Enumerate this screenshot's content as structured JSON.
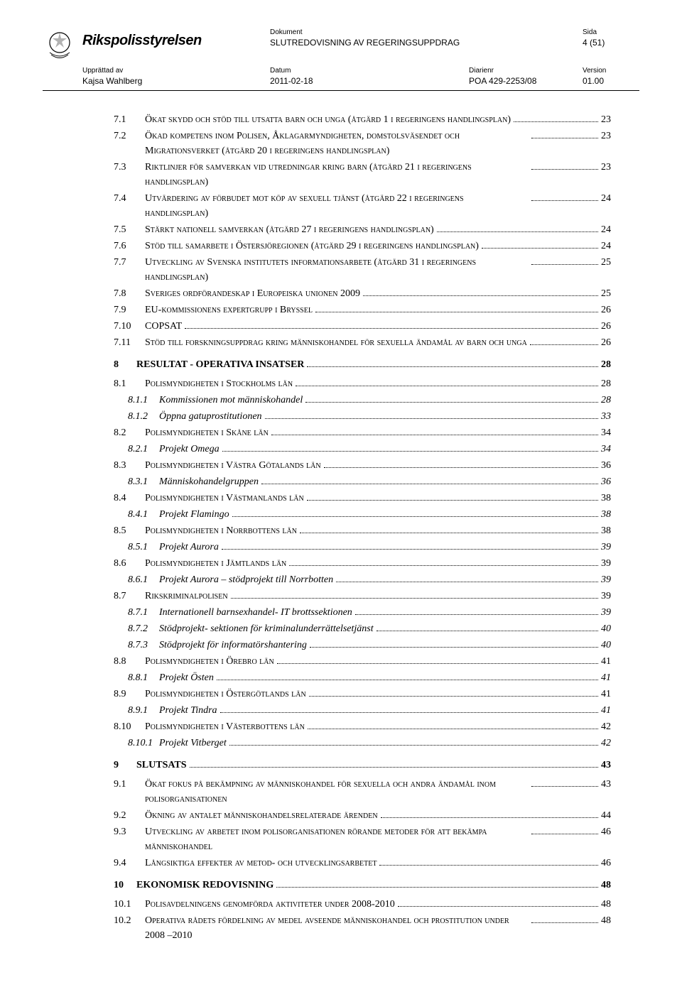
{
  "header": {
    "org_name": "Rikspolisstyrelsen",
    "dokument_label": "Dokument",
    "dokument_value": "SLUTREDOVISNING AV REGERINGSUPPDRAG",
    "sida_label": "Sida",
    "sida_value": "4 (51)",
    "upprattad_label": "Upprättad av",
    "upprattad_value": "Kajsa Wahlberg",
    "datum_label": "Datum",
    "datum_value": "2011-02-18",
    "diarienr_label": "Diarienr",
    "diarienr_value": "POA 429-2253/08",
    "version_label": "Version",
    "version_value": "01.00"
  },
  "toc": [
    {
      "level": 2,
      "num": "7.1",
      "title": "Ökat skydd och stöd till utsatta barn och unga (åtgärd 1 i regeringens handlingsplan)",
      "page": "23",
      "wrap": true
    },
    {
      "level": 2,
      "num": "7.2",
      "title": "Ökad kompetens inom Polisen, Åklagarmyndigheten, domstolsväsendet och Migrationsverket (åtgärd 20 i regeringens handlingsplan)",
      "page": "23",
      "wrap": true
    },
    {
      "level": 2,
      "num": "7.3",
      "title": "Riktlinjer för samverkan vid utredningar kring barn (åtgärd 21 i regeringens handlingsplan)",
      "page": "23",
      "wrap": true
    },
    {
      "level": 2,
      "num": "7.4",
      "title": "Utvärdering av förbudet mot köp av sexuell tjänst (åtgärd 22 i regeringens handlingsplan)",
      "page": "24",
      "wrap": true
    },
    {
      "level": 2,
      "num": "7.5",
      "title": "Stärkt nationell samverkan (åtgärd 27 i regeringens handlingsplan)",
      "page": "24",
      "wrap": true
    },
    {
      "level": 2,
      "num": "7.6",
      "title": "Stöd till samarbete i Östersjöregionen (åtgärd 29 i regeringens handlingsplan)",
      "page": "24",
      "wrap": true
    },
    {
      "level": 2,
      "num": "7.7",
      "title": "Utveckling av Svenska institutets informationsarbete (åtgärd 31 i regeringens handlingsplan)",
      "page": "25",
      "wrap": true
    },
    {
      "level": 2,
      "num": "7.8",
      "title": "Sveriges ordförandeskap i Europeiska unionen 2009",
      "page": "25"
    },
    {
      "level": 2,
      "num": "7.9",
      "title": "EU-kommissionens expertgrupp i Bryssel",
      "page": "26"
    },
    {
      "level": 2,
      "num": "7.10",
      "title": "COPSAT",
      "page": "26"
    },
    {
      "level": 2,
      "num": "7.11",
      "title": "Stöd till forskningsuppdrag kring människohandel för sexuella ändamål av barn och unga",
      "page": "26",
      "wrap": true
    },
    {
      "level": 1,
      "num": "8",
      "title": "RESULTAT - OPERATIVA INSATSER",
      "page": "28"
    },
    {
      "level": 2,
      "num": "8.1",
      "title": "Polismyndigheten i Stockholms län",
      "page": "28"
    },
    {
      "level": 3,
      "num": "8.1.1",
      "title": "Kommissionen mot människohandel",
      "page": "28"
    },
    {
      "level": 3,
      "num": "8.1.2",
      "title": "Öppna gatuprostitutionen",
      "page": "33"
    },
    {
      "level": 2,
      "num": "8.2",
      "title": "Polismyndigheten i Skåne län",
      "page": "34"
    },
    {
      "level": 3,
      "num": "8.2.1",
      "title": "Projekt Omega",
      "page": "34"
    },
    {
      "level": 2,
      "num": "8.3",
      "title": "Polismyndigheten i Västra Götalands län",
      "page": "36"
    },
    {
      "level": 3,
      "num": "8.3.1",
      "title": "Människohandelgruppen",
      "page": "36"
    },
    {
      "level": 2,
      "num": "8.4",
      "title": "Polismyndigheten i Västmanlands län",
      "page": "38"
    },
    {
      "level": 3,
      "num": "8.4.1",
      "title": "Projekt Flamingo",
      "page": "38"
    },
    {
      "level": 2,
      "num": "8.5",
      "title": "Polismyndigheten i Norrbottens län",
      "page": "38"
    },
    {
      "level": 3,
      "num": "8.5.1",
      "title": "Projekt Aurora",
      "page": "39"
    },
    {
      "level": 2,
      "num": "8.6",
      "title": "Polismyndigheten i Jämtlands län",
      "page": "39"
    },
    {
      "level": 3,
      "num": "8.6.1",
      "title": "Projekt Aurora – stödprojekt till Norrbotten",
      "page": "39"
    },
    {
      "level": 2,
      "num": "8.7",
      "title": "Rikskriminalpolisen",
      "page": "39"
    },
    {
      "level": 3,
      "num": "8.7.1",
      "title": "Internationell barnsexhandel- IT brottssektionen",
      "page": "39"
    },
    {
      "level": 3,
      "num": "8.7.2",
      "title": "Stödprojekt- sektionen för kriminalunderrättelsetjänst",
      "page": "40"
    },
    {
      "level": 3,
      "num": "8.7.3",
      "title": "Stödprojekt för informatörshantering",
      "page": "40"
    },
    {
      "level": 2,
      "num": "8.8",
      "title": "Polismyndigheten i Örebro län",
      "page": "41"
    },
    {
      "level": 3,
      "num": "8.8.1",
      "title": "Projekt Östen",
      "page": "41"
    },
    {
      "level": 2,
      "num": "8.9",
      "title": "Polismyndigheten i Östergötlands län",
      "page": "41"
    },
    {
      "level": 3,
      "num": "8.9.1",
      "title": "Projekt Tindra",
      "page": "41"
    },
    {
      "level": 2,
      "num": "8.10",
      "title": "Polismyndigheten i Västerbottens län",
      "page": "42"
    },
    {
      "level": 3,
      "num": "8.10.1",
      "title": "Projekt Vitberget",
      "page": "42"
    },
    {
      "level": 1,
      "num": "9",
      "title": "SLUTSATS",
      "page": "43"
    },
    {
      "level": 2,
      "num": "9.1",
      "title": "Ökat fokus på bekämpning av människohandel för sexuella och andra ändamål inom polisorganisationen",
      "page": "43",
      "wrap": true
    },
    {
      "level": 2,
      "num": "9.2",
      "title": "Ökning av antalet människohandelsrelaterade ärenden",
      "page": "44"
    },
    {
      "level": 2,
      "num": "9.3",
      "title": "Utveckling av arbetet inom polisorganisationen rörande metoder för att bekämpa människohandel",
      "page": "46",
      "wrap": true
    },
    {
      "level": 2,
      "num": "9.4",
      "title": "Långsiktiga effekter av metod- och utvecklingsarbetet",
      "page": "46"
    },
    {
      "level": 1,
      "num": "10",
      "title": "EKONOMISK REDOVISNING",
      "page": "48"
    },
    {
      "level": 2,
      "num": "10.1",
      "title": "Polisavdelningens genomförda aktiviteter under 2008-2010",
      "page": "48"
    },
    {
      "level": 2,
      "num": "10.2",
      "title": "Operativa rådets fördelning av medel avseende människohandel och prostitution under 2008 –2010",
      "page": "48",
      "wrap": true
    }
  ]
}
